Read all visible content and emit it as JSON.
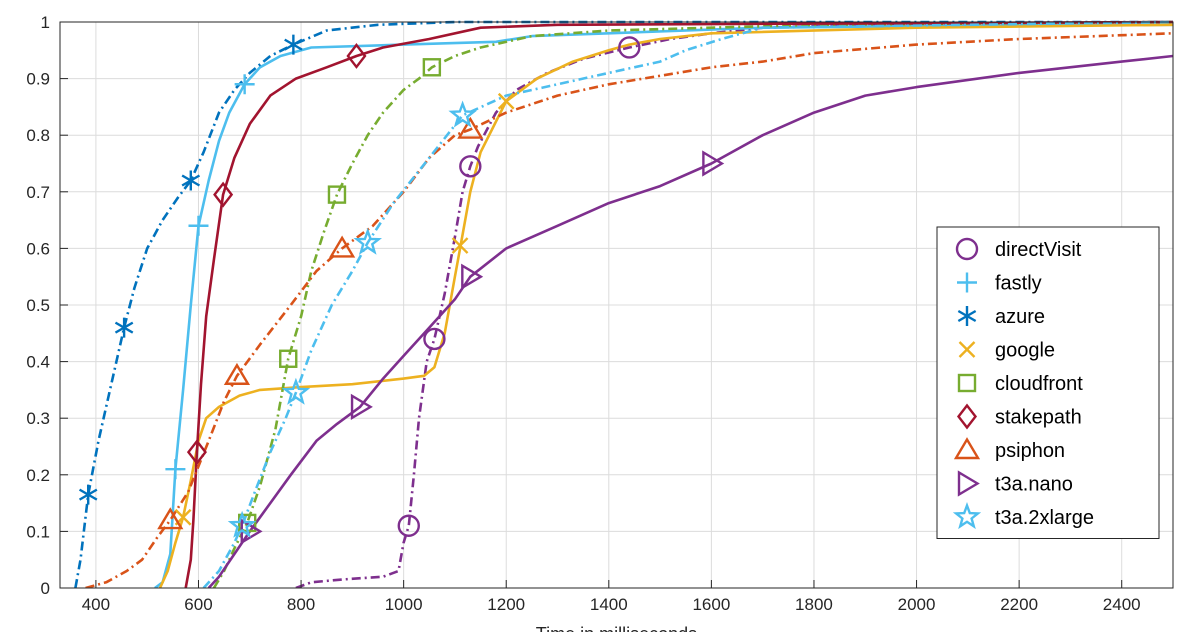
{
  "chart_data": {
    "type": "line",
    "title": "",
    "xlabel": "Time in milliseconds",
    "ylabel": "",
    "xlim": [
      330,
      2500
    ],
    "ylim": [
      0,
      1
    ],
    "xticks": [
      "400",
      "600",
      "800",
      "1000",
      "1200",
      "1400",
      "1600",
      "1800",
      "2000",
      "2200",
      "2400"
    ],
    "xtick_values": [
      400,
      600,
      800,
      1000,
      1200,
      1400,
      1600,
      1800,
      2000,
      2200,
      2400
    ],
    "yticks": [
      "0",
      "0.1",
      "0.2",
      "0.3",
      "0.4",
      "0.5",
      "0.6",
      "0.7",
      "0.8",
      "0.9",
      "1"
    ],
    "ytick_values": [
      0,
      0.1,
      0.2,
      0.3,
      0.4,
      0.5,
      0.6,
      0.7,
      0.8,
      0.9,
      1
    ],
    "grid": true,
    "legend_position": "bottom-right",
    "series": [
      {
        "name": "directVisit",
        "color": "#7E2F8E",
        "dash": "dashdot",
        "marker": "circle",
        "points": [
          [
            790,
            0
          ],
          [
            820,
            0.01
          ],
          [
            880,
            0.015
          ],
          [
            960,
            0.02
          ],
          [
            990,
            0.03
          ],
          [
            1000,
            0.08
          ],
          [
            1010,
            0.11
          ],
          [
            1020,
            0.2
          ],
          [
            1030,
            0.3
          ],
          [
            1045,
            0.4
          ],
          [
            1060,
            0.44
          ],
          [
            1080,
            0.52
          ],
          [
            1100,
            0.62
          ],
          [
            1115,
            0.7
          ],
          [
            1130,
            0.745
          ],
          [
            1145,
            0.78
          ],
          [
            1180,
            0.84
          ],
          [
            1220,
            0.88
          ],
          [
            1280,
            0.91
          ],
          [
            1350,
            0.935
          ],
          [
            1440,
            0.955
          ],
          [
            1520,
            0.97
          ],
          [
            1600,
            0.98
          ],
          [
            1700,
            0.99
          ],
          [
            1900,
            0.995
          ],
          [
            2500,
            1.0
          ]
        ],
        "markers": [
          [
            1010,
            0.11
          ],
          [
            1060,
            0.44
          ],
          [
            1130,
            0.745
          ],
          [
            1440,
            0.955
          ]
        ]
      },
      {
        "name": "fastly",
        "color": "#4DBEEE",
        "dash": "solid",
        "marker": "plus",
        "points": [
          [
            515,
            0
          ],
          [
            530,
            0.01
          ],
          [
            545,
            0.06
          ],
          [
            555,
            0.21
          ],
          [
            570,
            0.35
          ],
          [
            585,
            0.5
          ],
          [
            600,
            0.64
          ],
          [
            620,
            0.72
          ],
          [
            640,
            0.79
          ],
          [
            660,
            0.84
          ],
          [
            690,
            0.89
          ],
          [
            720,
            0.92
          ],
          [
            760,
            0.94
          ],
          [
            820,
            0.955
          ],
          [
            1000,
            0.96
          ],
          [
            1180,
            0.965
          ],
          [
            1250,
            0.975
          ],
          [
            1400,
            0.98
          ],
          [
            1700,
            0.99
          ],
          [
            2000,
            0.993
          ],
          [
            2500,
            0.995
          ]
        ],
        "markers": [
          [
            555,
            0.21
          ],
          [
            600,
            0.64
          ],
          [
            690,
            0.89
          ]
        ]
      },
      {
        "name": "azure",
        "color": "#0072BD",
        "dash": "dashdot",
        "marker": "asterisk",
        "points": [
          [
            360,
            0
          ],
          [
            370,
            0.05
          ],
          [
            385,
            0.165
          ],
          [
            405,
            0.26
          ],
          [
            425,
            0.34
          ],
          [
            440,
            0.4
          ],
          [
            455,
            0.46
          ],
          [
            475,
            0.53
          ],
          [
            500,
            0.6
          ],
          [
            530,
            0.65
          ],
          [
            560,
            0.69
          ],
          [
            585,
            0.72
          ],
          [
            610,
            0.77
          ],
          [
            640,
            0.84
          ],
          [
            670,
            0.88
          ],
          [
            700,
            0.91
          ],
          [
            740,
            0.94
          ],
          [
            785,
            0.96
          ],
          [
            850,
            0.985
          ],
          [
            950,
            0.995
          ],
          [
            1100,
            1.0
          ],
          [
            2500,
            1.0
          ]
        ],
        "markers": [
          [
            385,
            0.165
          ],
          [
            455,
            0.46
          ],
          [
            585,
            0.72
          ],
          [
            785,
            0.96
          ]
        ]
      },
      {
        "name": "google",
        "color": "#EDB120",
        "dash": "solid",
        "marker": "x",
        "points": [
          [
            525,
            0
          ],
          [
            540,
            0.03
          ],
          [
            555,
            0.08
          ],
          [
            570,
            0.125
          ],
          [
            585,
            0.19
          ],
          [
            600,
            0.26
          ],
          [
            615,
            0.3
          ],
          [
            640,
            0.32
          ],
          [
            680,
            0.34
          ],
          [
            720,
            0.35
          ],
          [
            800,
            0.355
          ],
          [
            900,
            0.36
          ],
          [
            1000,
            0.37
          ],
          [
            1040,
            0.375
          ],
          [
            1060,
            0.39
          ],
          [
            1080,
            0.45
          ],
          [
            1100,
            0.55
          ],
          [
            1110,
            0.6
          ],
          [
            1130,
            0.7
          ],
          [
            1150,
            0.77
          ],
          [
            1200,
            0.86
          ],
          [
            1260,
            0.9
          ],
          [
            1330,
            0.93
          ],
          [
            1400,
            0.95
          ],
          [
            1440,
            0.96
          ],
          [
            1500,
            0.97
          ],
          [
            1600,
            0.98
          ],
          [
            2000,
            0.99
          ],
          [
            2500,
            0.995
          ]
        ],
        "markers": [
          [
            570,
            0.125
          ],
          [
            1110,
            0.605
          ],
          [
            1200,
            0.86
          ]
        ]
      },
      {
        "name": "cloudfront",
        "color": "#77AC30",
        "dash": "dashdot",
        "marker": "square",
        "points": [
          [
            630,
            0
          ],
          [
            650,
            0.03
          ],
          [
            670,
            0.07
          ],
          [
            695,
            0.115
          ],
          [
            720,
            0.18
          ],
          [
            750,
            0.28
          ],
          [
            775,
            0.405
          ],
          [
            800,
            0.48
          ],
          [
            820,
            0.56
          ],
          [
            845,
            0.63
          ],
          [
            870,
            0.695
          ],
          [
            900,
            0.75
          ],
          [
            930,
            0.8
          ],
          [
            960,
            0.84
          ],
          [
            1000,
            0.88
          ],
          [
            1030,
            0.9
          ],
          [
            1055,
            0.92
          ],
          [
            1100,
            0.94
          ],
          [
            1150,
            0.955
          ],
          [
            1250,
            0.975
          ],
          [
            1400,
            0.985
          ],
          [
            1600,
            0.99
          ],
          [
            1800,
            0.995
          ],
          [
            2500,
            1.0
          ]
        ],
        "markers": [
          [
            695,
            0.115
          ],
          [
            775,
            0.405
          ],
          [
            870,
            0.695
          ],
          [
            1055,
            0.92
          ]
        ]
      },
      {
        "name": "stakepath",
        "color": "#A2142F",
        "dash": "solid",
        "marker": "diamond",
        "points": [
          [
            575,
            0
          ],
          [
            585,
            0.05
          ],
          [
            590,
            0.12
          ],
          [
            597,
            0.24
          ],
          [
            605,
            0.36
          ],
          [
            615,
            0.48
          ],
          [
            630,
            0.58
          ],
          [
            648,
            0.695
          ],
          [
            670,
            0.76
          ],
          [
            700,
            0.82
          ],
          [
            740,
            0.87
          ],
          [
            790,
            0.9
          ],
          [
            850,
            0.92
          ],
          [
            908,
            0.94
          ],
          [
            960,
            0.955
          ],
          [
            1050,
            0.97
          ],
          [
            1150,
            0.99
          ],
          [
            1300,
            0.995
          ],
          [
            2500,
            1.0
          ]
        ],
        "markers": [
          [
            597,
            0.24
          ],
          [
            648,
            0.695
          ],
          [
            908,
            0.94
          ]
        ]
      },
      {
        "name": "psiphon",
        "color": "#D95319",
        "dash": "dashdot",
        "marker": "triangle-up",
        "points": [
          [
            380,
            0
          ],
          [
            420,
            0.01
          ],
          [
            460,
            0.03
          ],
          [
            490,
            0.05
          ],
          [
            520,
            0.09
          ],
          [
            545,
            0.12
          ],
          [
            580,
            0.17
          ],
          [
            620,
            0.26
          ],
          [
            650,
            0.33
          ],
          [
            675,
            0.375
          ],
          [
            720,
            0.43
          ],
          [
            780,
            0.5
          ],
          [
            830,
            0.56
          ],
          [
            880,
            0.6
          ],
          [
            940,
            0.64
          ],
          [
            1000,
            0.7
          ],
          [
            1050,
            0.76
          ],
          [
            1100,
            0.8
          ],
          [
            1130,
            0.81
          ],
          [
            1200,
            0.84
          ],
          [
            1300,
            0.87
          ],
          [
            1400,
            0.89
          ],
          [
            1500,
            0.905
          ],
          [
            1600,
            0.92
          ],
          [
            1700,
            0.93
          ],
          [
            1800,
            0.945
          ],
          [
            2000,
            0.96
          ],
          [
            2200,
            0.97
          ],
          [
            2500,
            0.98
          ]
        ],
        "markers": [
          [
            545,
            0.12
          ],
          [
            675,
            0.375
          ],
          [
            880,
            0.6
          ],
          [
            1130,
            0.81
          ]
        ]
      },
      {
        "name": "t3a.nano",
        "color": "#7E2F8E",
        "dash": "solid",
        "marker": "triangle-right",
        "points": [
          [
            620,
            0
          ],
          [
            640,
            0.02
          ],
          [
            670,
            0.06
          ],
          [
            700,
            0.1
          ],
          [
            740,
            0.15
          ],
          [
            780,
            0.2
          ],
          [
            830,
            0.26
          ],
          [
            870,
            0.29
          ],
          [
            915,
            0.32
          ],
          [
            960,
            0.37
          ],
          [
            1000,
            0.41
          ],
          [
            1050,
            0.46
          ],
          [
            1100,
            0.51
          ],
          [
            1130,
            0.55
          ],
          [
            1200,
            0.6
          ],
          [
            1300,
            0.64
          ],
          [
            1400,
            0.68
          ],
          [
            1500,
            0.71
          ],
          [
            1600,
            0.75
          ],
          [
            1700,
            0.8
          ],
          [
            1800,
            0.84
          ],
          [
            1900,
            0.87
          ],
          [
            2000,
            0.885
          ],
          [
            2200,
            0.91
          ],
          [
            2400,
            0.93
          ],
          [
            2500,
            0.94
          ]
        ],
        "markers": [
          [
            700,
            0.1
          ],
          [
            915,
            0.32
          ],
          [
            1130,
            0.55
          ],
          [
            1600,
            0.75
          ]
        ]
      },
      {
        "name": "t3a.2xlarge",
        "color": "#4DBEEE",
        "dash": "dashdot",
        "marker": "star",
        "points": [
          [
            610,
            0
          ],
          [
            640,
            0.03
          ],
          [
            670,
            0.08
          ],
          [
            685,
            0.11
          ],
          [
            710,
            0.17
          ],
          [
            740,
            0.24
          ],
          [
            770,
            0.3
          ],
          [
            790,
            0.345
          ],
          [
            820,
            0.42
          ],
          [
            860,
            0.5
          ],
          [
            900,
            0.56
          ],
          [
            930,
            0.61
          ],
          [
            980,
            0.68
          ],
          [
            1050,
            0.76
          ],
          [
            1115,
            0.835
          ],
          [
            1200,
            0.87
          ],
          [
            1300,
            0.89
          ],
          [
            1400,
            0.91
          ],
          [
            1500,
            0.93
          ],
          [
            1550,
            0.95
          ],
          [
            1620,
            0.97
          ],
          [
            1700,
            0.99
          ],
          [
            2500,
            1.0
          ]
        ],
        "markers": [
          [
            685,
            0.11
          ],
          [
            790,
            0.345
          ],
          [
            930,
            0.61
          ],
          [
            1115,
            0.835
          ]
        ]
      }
    ]
  }
}
